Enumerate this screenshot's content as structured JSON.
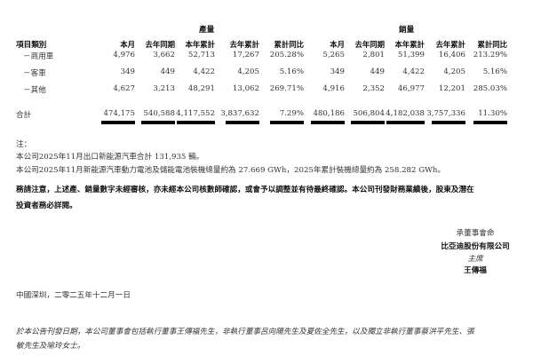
{
  "table": {
    "group_headers": [
      "產量",
      "銷量"
    ],
    "category_header": "項目類別",
    "column_headers": [
      "本月",
      "去年同期",
      "本年累計",
      "去年累計",
      "累計同比",
      "本月",
      "去年同期",
      "本年累計",
      "去年累計",
      "累計同比"
    ],
    "rows": [
      {
        "label": "－商用車",
        "values": [
          "4,976",
          "3,662",
          "52,713",
          "17,267",
          "205.28%",
          "5,265",
          "2,801",
          "51,399",
          "16,406",
          "213.29%"
        ]
      },
      {
        "label": "－客車",
        "values": [
          "349",
          "449",
          "4,422",
          "4,205",
          "5.16%",
          "349",
          "449",
          "4,422",
          "4,205",
          "5.16%"
        ]
      },
      {
        "label": "－其他",
        "values": [
          "4,627",
          "3,213",
          "48,291",
          "13,062",
          "269.71%",
          "4,916",
          "2,352",
          "46,977",
          "12,201",
          "285.03%"
        ]
      }
    ],
    "total": {
      "label": "合計",
      "values": [
        "474,175",
        "540,588",
        "4,117,552",
        "3,837,632",
        "7.29%",
        "480,186",
        "506,804",
        "4,182,038",
        "3,757,336",
        "11.30%"
      ]
    }
  },
  "notes": {
    "title": "注：",
    "lines": [
      "本公司2025年11月出口新能源汽車合計 131,935 輛。",
      "本公司2025年11月新能源汽車動力電池及儲能電池裝機總量約為 27.669 GWh，2025年累計裝機總量約為 258.282 GWh。"
    ]
  },
  "warning": [
    "務請注意，上述產、銷量數字未經審核，亦未經本公司核數師確認，或會予以調整並有待最終確認。本公司刊發財務業績後，股東及潛在",
    "投資者務必詳閱。"
  ],
  "signature": {
    "by_order": "承董事會命",
    "company": "比亞迪股份有限公司",
    "role": "主席",
    "name": "王傳福"
  },
  "place_date": "中國深圳，二零二五年十二月一日",
  "directors": [
    "於本公告刊發日期，本公司董事會包括執行董事王傳福先生，非執行董事呂向陽先生及夏佐全先生，以及獨立非執行董事蔡洪平先生、張",
    "敏先生及喻玲女士。"
  ]
}
